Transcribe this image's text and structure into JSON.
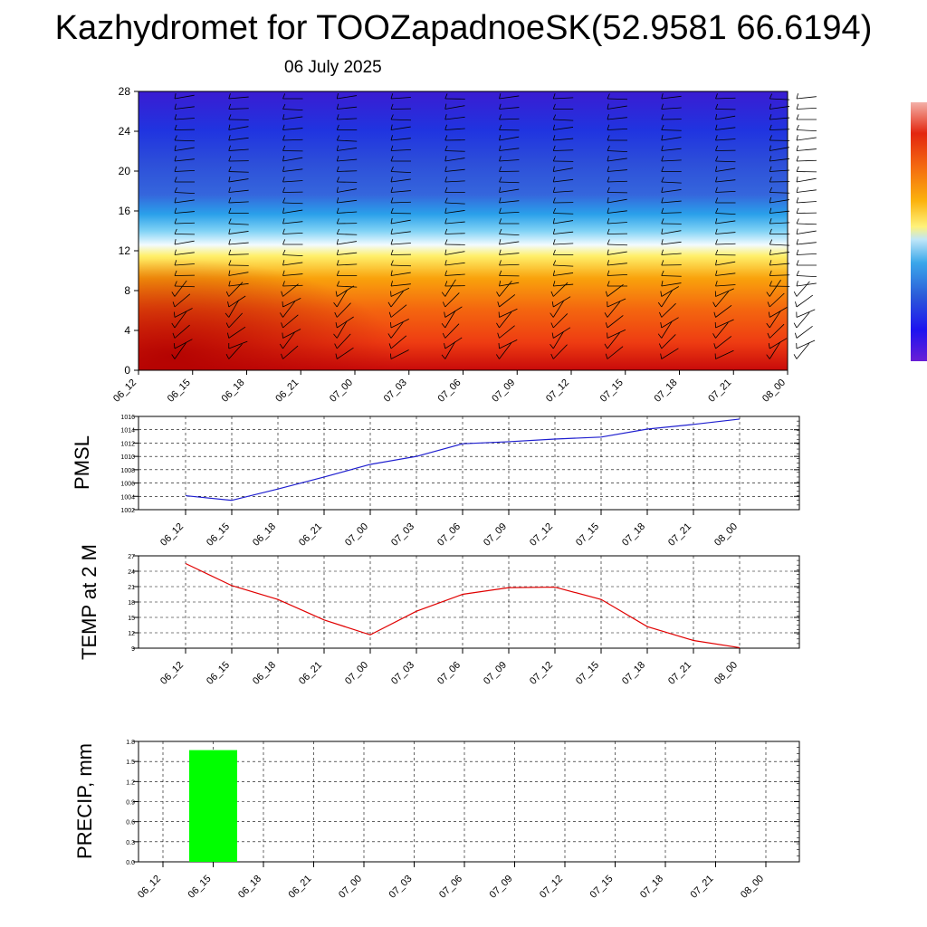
{
  "header": {
    "title": "Kazhydromet for TOOZapadnoeSK(52.9581 66.6194)",
    "date": "06 July 2025"
  },
  "colors": {
    "pmsl_line": "#1f1fcf",
    "temp_line": "#e00000",
    "precip_bar": "#00ff00",
    "grid": "#000000"
  },
  "chart_data": [
    {
      "id": "upper_air",
      "type": "heatmap",
      "description_of_variables": "filled temperature contours with wind barbs",
      "x": [
        "06_12",
        "06_15",
        "06_18",
        "06_21",
        "07_00",
        "07_03",
        "07_06",
        "07_09",
        "07_12",
        "07_15",
        "07_18",
        "07_21",
        "08_00"
      ],
      "y_ticks": [
        0,
        4,
        8,
        12,
        16,
        20,
        24,
        28
      ],
      "ylim": [
        0,
        28
      ],
      "colorbar": "violet-blue-cyan-yellow-orange-red",
      "wind_barbs": true
    },
    {
      "id": "pmsl",
      "type": "line",
      "ylabel": "PMSL",
      "x": [
        "06_12",
        "06_15",
        "06_18",
        "06_21",
        "07_00",
        "07_03",
        "07_06",
        "07_09",
        "07_12",
        "07_15",
        "07_18",
        "07_21",
        "08_00"
      ],
      "values": [
        1004.1,
        1003.4,
        1005.1,
        1006.9,
        1008.8,
        1010.0,
        1011.9,
        1012.2,
        1012.6,
        1012.9,
        1014.1,
        1014.8,
        1015.6
      ],
      "y_ticks": [
        1002,
        1004,
        1006,
        1008,
        1010,
        1012,
        1014,
        1016
      ],
      "ylim": [
        1002,
        1016
      ],
      "grid": true
    },
    {
      "id": "temp2m",
      "type": "line",
      "ylabel": "TEMP at 2 M",
      "x": [
        "06_12",
        "06_15",
        "06_18",
        "06_21",
        "07_00",
        "07_03",
        "07_06",
        "07_09",
        "07_12",
        "07_15",
        "07_18",
        "07_21",
        "08_00"
      ],
      "values": [
        25.5,
        21.2,
        18.5,
        14.5,
        11.6,
        16.2,
        19.5,
        20.8,
        20.9,
        18.5,
        13.2,
        10.5,
        9.1
      ],
      "y_ticks": [
        9,
        12,
        15,
        18,
        21,
        24,
        27
      ],
      "ylim": [
        9,
        27
      ],
      "grid": true
    },
    {
      "id": "precip",
      "type": "bar",
      "ylabel": "PRECIP, mm",
      "categories": [
        "06_12",
        "06_15",
        "06_18",
        "06_21",
        "07_00",
        "07_03",
        "07_06",
        "07_09",
        "07_12",
        "07_15",
        "07_18",
        "07_21",
        "08_00"
      ],
      "values": [
        0,
        1.67,
        0,
        0,
        0,
        0,
        0,
        0,
        0,
        0,
        0,
        0,
        0
      ],
      "y_ticks": [
        "0.0",
        "0.3",
        "0.6",
        "0.9",
        "1.2",
        "1.5",
        "1.8"
      ],
      "ylim": [
        0,
        1.8
      ],
      "grid": true
    }
  ]
}
